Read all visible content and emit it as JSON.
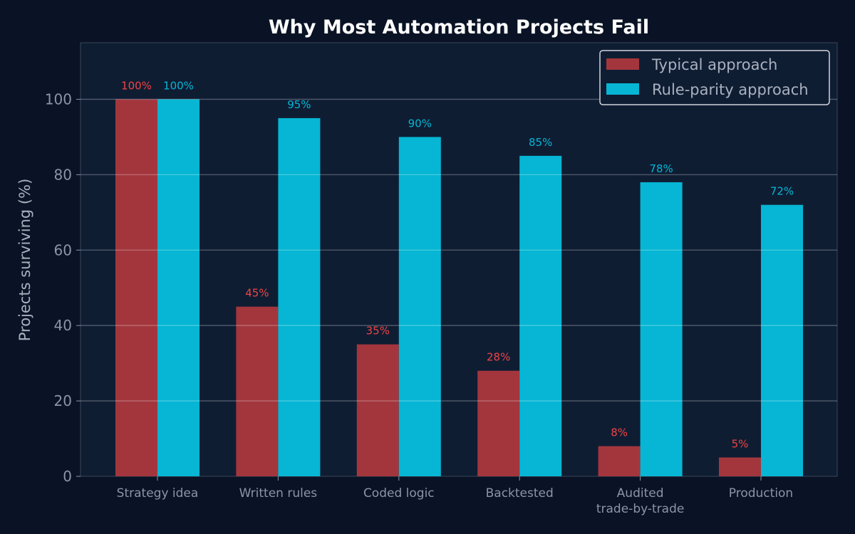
{
  "chart_data": {
    "type": "bar",
    "title": "Why Most Automation Projects Fail",
    "xlabel": "",
    "ylabel": "Projects surviving (%)",
    "ylim": [
      0,
      115
    ],
    "yticks": [
      0,
      20,
      40,
      60,
      80,
      100
    ],
    "grid": true,
    "legend_position": "top-right",
    "categories": [
      "Strategy idea",
      "Written rules",
      "Coded logic",
      "Backtested",
      "Audited\ntrade-by-trade",
      "Production"
    ],
    "series": [
      {
        "name": "Typical approach",
        "values": [
          100,
          45,
          35,
          28,
          8,
          5
        ],
        "color": "#a3363d",
        "label_color": "#ef4444",
        "labels": [
          "100%",
          "45%",
          "35%",
          "28%",
          "8%",
          "5%"
        ]
      },
      {
        "name": "Rule-parity approach",
        "values": [
          100,
          95,
          90,
          85,
          78,
          72
        ],
        "color": "#06b6d4",
        "label_color": "#06b6d4",
        "labels": [
          "100%",
          "95%",
          "90%",
          "85%",
          "78%",
          "72%"
        ]
      }
    ],
    "colors": {
      "background": "#0a1325",
      "plot_background": "#0f1d33",
      "text": "#ffffff",
      "axis_text": "#8b95a7"
    }
  }
}
